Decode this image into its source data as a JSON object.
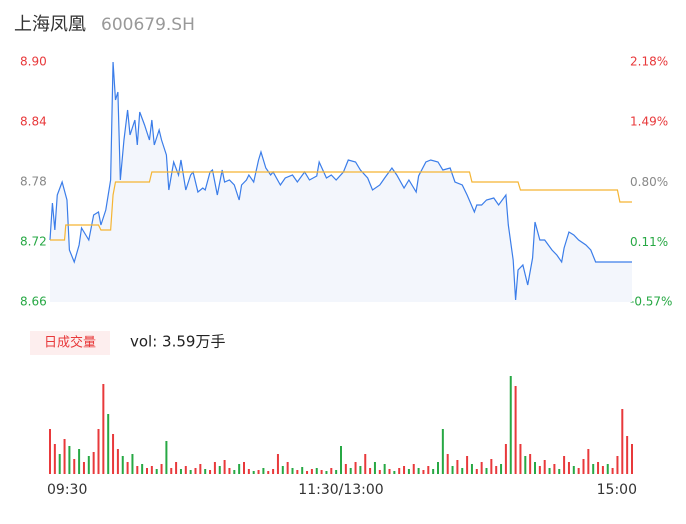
{
  "chart_data": [
    {
      "type": "line",
      "title": "上海凤凰",
      "subtitle": "600679.SH",
      "xlim": [
        0,
        240
      ],
      "ylim": [
        8.66,
        8.9
      ],
      "yticks": [
        8.9,
        8.84,
        8.78,
        8.72,
        8.66
      ],
      "ytick_labels": [
        "8.90",
        "8.84",
        "8.78",
        "8.72",
        "8.66"
      ],
      "ytick_colors": [
        "#e8393b",
        "#e8393b",
        "#888888",
        "#27a844",
        "#27a844"
      ],
      "y2lim": [
        -0.57,
        2.18
      ],
      "y2ticks": [
        {
          "value": 2.18,
          "label": "2.18%"
        },
        {
          "value": 1.49,
          "label": "1.49%"
        },
        {
          "value": 0.8,
          "label": "0.80%"
        },
        {
          "value": 0.11,
          "label": "0.11%"
        },
        {
          "value": -0.57,
          "label": "-0.57%"
        }
      ],
      "y2tick_colors": [
        "#e8393b",
        "#e8393b",
        "#888888",
        "#27a844",
        "#27a844"
      ],
      "series": [
        {
          "color": "#3b7de9",
          "fill": "#f3f6fc",
          "x": [
            0,
            1,
            2,
            3,
            5,
            7,
            8,
            10,
            12,
            13,
            15,
            16,
            18,
            20,
            21,
            23,
            25,
            26,
            27,
            28,
            29,
            30.5,
            32,
            33,
            35,
            36,
            37,
            39,
            41,
            42,
            43,
            45,
            46,
            48,
            49,
            51,
            53,
            54,
            56,
            58,
            59,
            61,
            63,
            64,
            66,
            67,
            69,
            71,
            72,
            74,
            76,
            78,
            79,
            81,
            82,
            84,
            86,
            87,
            89,
            91,
            92,
            95,
            97,
            100,
            102,
            105,
            107,
            110,
            111,
            114,
            116,
            118,
            121,
            123,
            126,
            128,
            131,
            133,
            136,
            138,
            141,
            143,
            146,
            148,
            151,
            152,
            155,
            157,
            160,
            162,
            165,
            167,
            170,
            172,
            175,
            176,
            178,
            180,
            183,
            185,
            188,
            189,
            191,
            192,
            193,
            195,
            197,
            199,
            200,
            202,
            204,
            207,
            209,
            211,
            212,
            214,
            216,
            218,
            221,
            223,
            225,
            226,
            240
          ],
          "values": [
            8.722,
            8.759,
            8.732,
            8.767,
            8.78,
            8.762,
            8.712,
            8.7,
            8.717,
            8.734,
            8.726,
            8.722,
            8.747,
            8.75,
            8.737,
            8.752,
            8.782,
            8.9,
            8.862,
            8.87,
            8.782,
            8.822,
            8.852,
            8.827,
            8.842,
            8.817,
            8.85,
            8.837,
            8.822,
            8.842,
            8.817,
            8.832,
            8.822,
            8.807,
            8.772,
            8.8,
            8.787,
            8.802,
            8.772,
            8.787,
            8.79,
            8.77,
            8.774,
            8.772,
            8.79,
            8.792,
            8.767,
            8.792,
            8.78,
            8.782,
            8.777,
            8.762,
            8.777,
            8.782,
            8.787,
            8.78,
            8.802,
            8.81,
            8.794,
            8.787,
            8.79,
            8.777,
            8.784,
            8.787,
            8.78,
            8.79,
            8.782,
            8.786,
            8.8,
            8.784,
            8.787,
            8.782,
            8.79,
            8.802,
            8.8,
            8.792,
            8.784,
            8.772,
            8.777,
            8.784,
            8.794,
            8.787,
            8.774,
            8.782,
            8.77,
            8.786,
            8.8,
            8.802,
            8.8,
            8.792,
            8.794,
            8.78,
            8.777,
            8.767,
            8.75,
            8.757,
            8.757,
            8.762,
            8.764,
            8.757,
            8.767,
            8.737,
            8.702,
            8.662,
            8.692,
            8.697,
            8.677,
            8.704,
            8.74,
            8.722,
            8.722,
            8.712,
            8.707,
            8.7,
            8.714,
            8.73,
            8.727,
            8.722,
            8.717,
            8.712,
            8.7,
            8.7,
            8.7
          ]
        },
        {
          "color": "#f5b533",
          "x": [
            0,
            6,
            6.5,
            20,
            21,
            25,
            26,
            27,
            41,
            42,
            173,
            174,
            193,
            194,
            234,
            235,
            240
          ],
          "values": [
            8.722,
            8.722,
            8.737,
            8.737,
            8.732,
            8.732,
            8.767,
            8.78,
            8.78,
            8.79,
            8.79,
            8.78,
            8.78,
            8.772,
            8.772,
            8.76,
            8.76
          ]
        }
      ]
    },
    {
      "type": "bar",
      "title": "日成交量",
      "annotation": "vol: 3.59万手",
      "xlim": [
        0,
        240
      ],
      "xticks": [
        {
          "value": 0,
          "label": "09:30"
        },
        {
          "value": 120,
          "label": "11:30/13:00"
        },
        {
          "value": 240,
          "label": "15:00"
        }
      ],
      "ylim": [
        0,
        100
      ],
      "x": [
        0,
        2,
        4,
        6,
        8,
        10,
        12,
        14,
        16,
        18,
        20,
        22,
        24,
        26,
        28,
        30,
        32,
        34,
        36,
        38,
        40,
        42,
        44,
        46,
        48,
        50,
        52,
        54,
        56,
        58,
        60,
        62,
        64,
        66,
        68,
        70,
        72,
        74,
        76,
        78,
        80,
        82,
        84,
        86,
        88,
        90,
        92,
        94,
        96,
        98,
        100,
        102,
        104,
        106,
        108,
        110,
        112,
        114,
        116,
        118,
        120,
        122,
        124,
        126,
        128,
        130,
        132,
        134,
        136,
        138,
        140,
        142,
        144,
        146,
        148,
        150,
        152,
        154,
        156,
        158,
        160,
        162,
        164,
        166,
        168,
        170,
        172,
        174,
        176,
        178,
        180,
        182,
        184,
        186,
        188,
        190,
        192,
        194,
        196,
        198,
        200,
        202,
        204,
        206,
        208,
        210,
        212,
        214,
        216,
        218,
        220,
        222,
        224,
        226,
        228,
        230,
        232,
        234,
        236,
        238,
        240
      ],
      "values": [
        45,
        30,
        20,
        35,
        28,
        15,
        25,
        12,
        18,
        22,
        45,
        90,
        60,
        40,
        25,
        18,
        12,
        20,
        8,
        10,
        6,
        8,
        5,
        10,
        33,
        6,
        12,
        5,
        8,
        4,
        6,
        10,
        5,
        4,
        12,
        8,
        14,
        6,
        4,
        10,
        12,
        5,
        3,
        4,
        6,
        3,
        5,
        20,
        8,
        12,
        6,
        4,
        7,
        3,
        5,
        6,
        4,
        3,
        6,
        4,
        28,
        10,
        6,
        12,
        8,
        20,
        6,
        12,
        4,
        10,
        5,
        3,
        6,
        8,
        5,
        10,
        6,
        4,
        8,
        5,
        12,
        45,
        20,
        8,
        14,
        6,
        18,
        10,
        5,
        12,
        6,
        15,
        8,
        10,
        30,
        98,
        88,
        30,
        18,
        20,
        12,
        8,
        14,
        6,
        10,
        5,
        18,
        12,
        8,
        6,
        15,
        25,
        10,
        12,
        8,
        10,
        6,
        18,
        65,
        38,
        30
      ],
      "colors": [
        "#e8393b",
        "#e8393b",
        "#27a844",
        "#e8393b",
        "#27a844",
        "#e8393b",
        "#27a844",
        "#e8393b",
        "#27a844",
        "#e8393b",
        "#e8393b",
        "#e8393b",
        "#27a844",
        "#e8393b",
        "#e8393b",
        "#27a844",
        "#e8393b",
        "#27a844",
        "#e8393b",
        "#27a844",
        "#e8393b",
        "#e8393b",
        "#27a844",
        "#e8393b",
        "#27a844",
        "#e8393b",
        "#e8393b",
        "#27a844",
        "#e8393b",
        "#27a844",
        "#e8393b",
        "#e8393b",
        "#27a844",
        "#e8393b",
        "#e8393b",
        "#27a844",
        "#e8393b",
        "#e8393b",
        "#27a844",
        "#27a844",
        "#e8393b",
        "#e8393b",
        "#27a844",
        "#e8393b",
        "#27a844",
        "#e8393b",
        "#e8393b",
        "#e8393b",
        "#27a844",
        "#e8393b",
        "#27a844",
        "#e8393b",
        "#27a844",
        "#e8393b",
        "#e8393b",
        "#27a844",
        "#e8393b",
        "#27a844",
        "#e8393b",
        "#27a844",
        "#27a844",
        "#e8393b",
        "#27a844",
        "#e8393b",
        "#27a844",
        "#e8393b",
        "#e8393b",
        "#27a844",
        "#e8393b",
        "#27a844",
        "#e8393b",
        "#27a844",
        "#e8393b",
        "#e8393b",
        "#27a844",
        "#e8393b",
        "#27a844",
        "#e8393b",
        "#e8393b",
        "#27a844",
        "#27a844",
        "#27a844",
        "#e8393b",
        "#27a844",
        "#e8393b",
        "#27a844",
        "#e8393b",
        "#27a844",
        "#e8393b",
        "#e8393b",
        "#27a844",
        "#e8393b",
        "#e8393b",
        "#27a844",
        "#e8393b",
        "#27a844",
        "#e8393b",
        "#e8393b",
        "#27a844",
        "#e8393b",
        "#27a844",
        "#e8393b",
        "#e8393b",
        "#27a844",
        "#e8393b",
        "#27a844",
        "#e8393b",
        "#e8393b",
        "#27a844",
        "#e8393b",
        "#e8393b",
        "#e8393b",
        "#27a844",
        "#e8393b",
        "#e8393b",
        "#27a844",
        "#e8393b",
        "#e8393b",
        "#e8393b",
        "#e8393b",
        "#e8393b"
      ]
    }
  ]
}
